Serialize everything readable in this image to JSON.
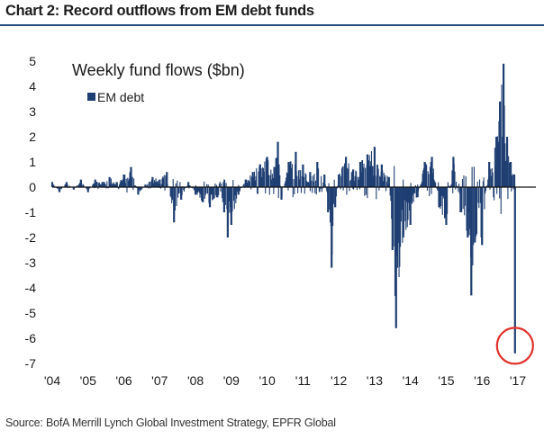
{
  "header": {
    "title": "Chart 2: Record outflows from EM debt funds"
  },
  "footer": {
    "source": "Source: BofA Merrill Lynch Global Investment Strategy, EPFR Global"
  },
  "chart_data": {
    "type": "bar",
    "title": "Weekly fund flows ($bn)",
    "xlabel": "",
    "ylabel": "",
    "ylim": [
      -7,
      5
    ],
    "yticks": [
      5,
      4,
      3,
      2,
      1,
      0,
      -1,
      -2,
      -3,
      -4,
      -5,
      -6,
      -7
    ],
    "xticks": [
      "'04",
      "'05",
      "'06",
      "'07",
      "'08",
      "'09",
      "'10",
      "'11",
      "'12",
      "'13",
      "'14",
      "'15",
      "'16",
      "'17"
    ],
    "x_range": [
      2004.0,
      2017.0
    ],
    "grid": false,
    "legend_position": "top-left",
    "series_color": "#1f3f73",
    "annotation": {
      "type": "circle",
      "color": "#e0302a",
      "x": 2016.92,
      "y": -6.3
    },
    "series": [
      {
        "name": "EM debt",
        "points": [
          [
            2004.0,
            0.2
          ],
          [
            2004.2,
            -0.2
          ],
          [
            2004.4,
            0.2
          ],
          [
            2004.6,
            -0.1
          ],
          [
            2004.8,
            0.3
          ],
          [
            2005.0,
            -0.2
          ],
          [
            2005.2,
            0.3
          ],
          [
            2005.4,
            0.2
          ],
          [
            2005.6,
            0.4
          ],
          [
            2005.8,
            0.2
          ],
          [
            2006.0,
            0.5
          ],
          [
            2006.2,
            0.8
          ],
          [
            2006.4,
            -0.3
          ],
          [
            2006.6,
            0.1
          ],
          [
            2006.8,
            0.4
          ],
          [
            2007.0,
            0.3
          ],
          [
            2007.2,
            0.6
          ],
          [
            2007.4,
            -1.4
          ],
          [
            2007.6,
            -0.5
          ],
          [
            2007.8,
            0.2
          ],
          [
            2008.0,
            -0.3
          ],
          [
            2008.2,
            -0.6
          ],
          [
            2008.4,
            -0.8
          ],
          [
            2008.6,
            -0.4
          ],
          [
            2008.8,
            -1.0
          ],
          [
            2008.9,
            -2.0
          ],
          [
            2009.0,
            -1.5
          ],
          [
            2009.2,
            -0.3
          ],
          [
            2009.4,
            0.3
          ],
          [
            2009.6,
            0.6
          ],
          [
            2009.8,
            0.9
          ],
          [
            2010.0,
            1.2
          ],
          [
            2010.2,
            0.8
          ],
          [
            2010.3,
            1.8
          ],
          [
            2010.4,
            -0.5
          ],
          [
            2010.6,
            1.0
          ],
          [
            2010.8,
            1.4
          ],
          [
            2011.0,
            0.9
          ],
          [
            2011.2,
            0.6
          ],
          [
            2011.4,
            1.0
          ],
          [
            2011.6,
            0.5
          ],
          [
            2011.7,
            -1.0
          ],
          [
            2011.8,
            -3.2
          ],
          [
            2011.9,
            -0.8
          ],
          [
            2012.0,
            0.5
          ],
          [
            2012.2,
            1.2
          ],
          [
            2012.4,
            0.7
          ],
          [
            2012.6,
            1.0
          ],
          [
            2012.8,
            1.3
          ],
          [
            2013.0,
            1.6
          ],
          [
            2013.2,
            0.9
          ],
          [
            2013.4,
            0.4
          ],
          [
            2013.5,
            -2.5
          ],
          [
            2013.6,
            -5.6
          ],
          [
            2013.8,
            -2.0
          ],
          [
            2014.0,
            -1.5
          ],
          [
            2014.2,
            -0.4
          ],
          [
            2014.4,
            1.0
          ],
          [
            2014.6,
            1.2
          ],
          [
            2014.8,
            -0.8
          ],
          [
            2015.0,
            -1.5
          ],
          [
            2015.2,
            1.2
          ],
          [
            2015.4,
            -1.0
          ],
          [
            2015.6,
            -2.0
          ],
          [
            2015.7,
            -4.3
          ],
          [
            2015.8,
            -2.2
          ],
          [
            2016.0,
            -2.3
          ],
          [
            2016.2,
            1.0
          ],
          [
            2016.4,
            2.0
          ],
          [
            2016.5,
            3.4
          ],
          [
            2016.6,
            4.9
          ],
          [
            2016.7,
            2.0
          ],
          [
            2016.8,
            1.0
          ],
          [
            2016.9,
            0.5
          ],
          [
            2016.92,
            -6.6
          ]
        ]
      }
    ]
  }
}
